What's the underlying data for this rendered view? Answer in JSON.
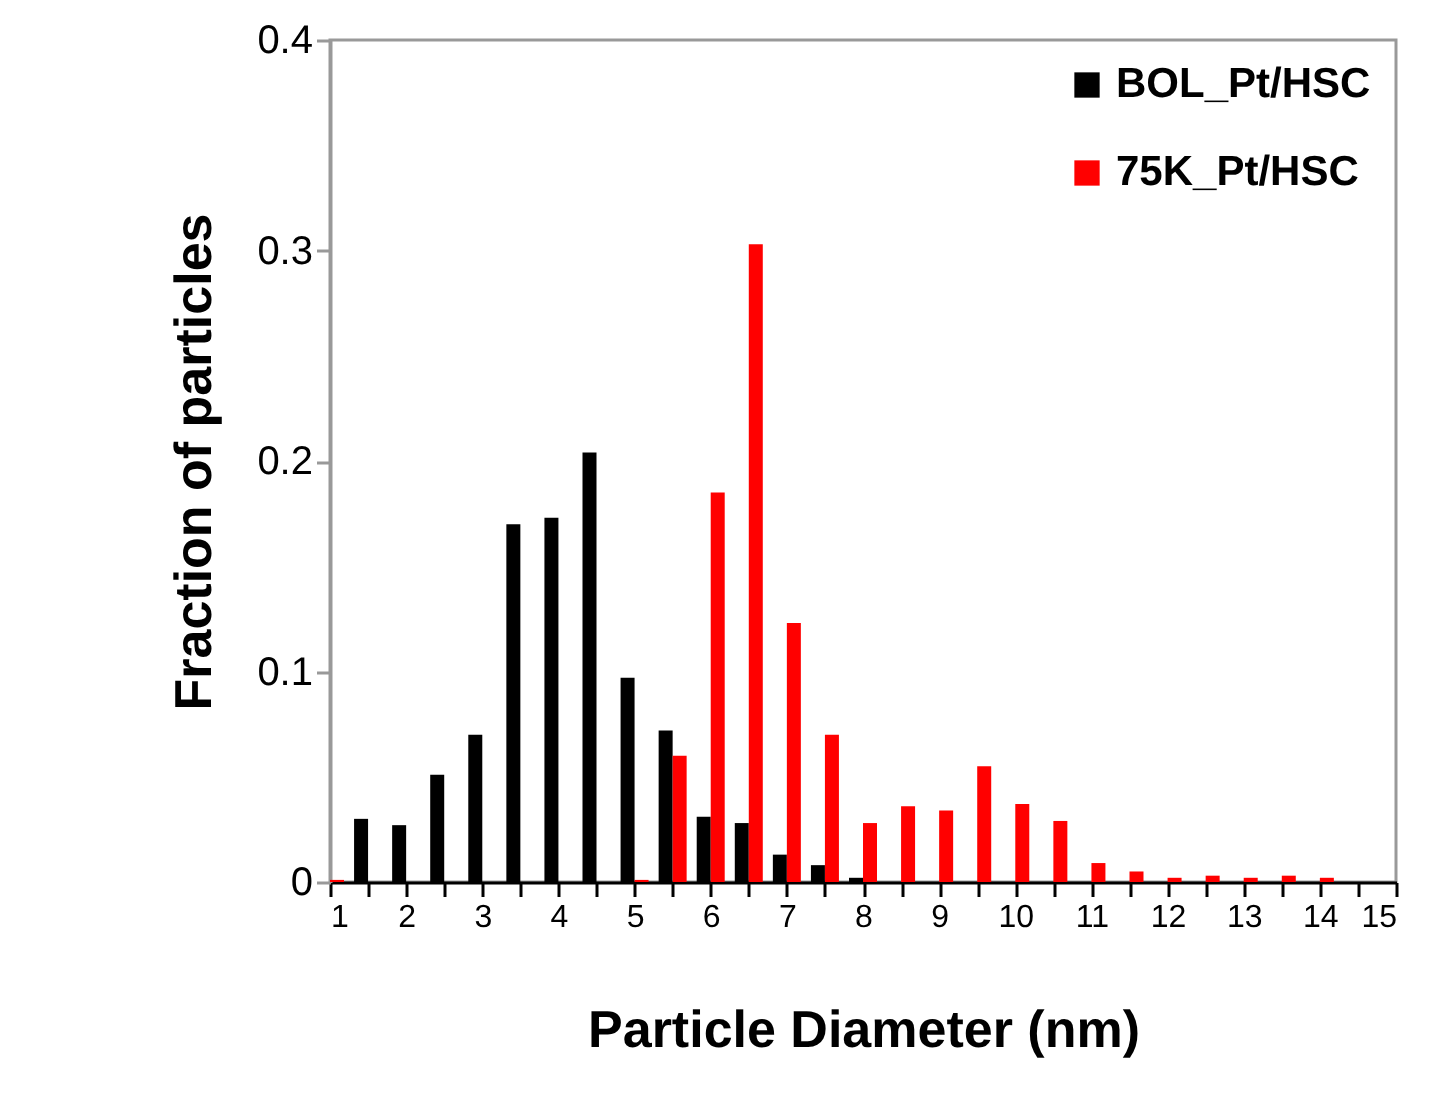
{
  "chart_data": {
    "type": "bar",
    "xlabel": "Particle Diameter (nm)",
    "ylabel": "Fraction of particles",
    "xlim": [
      1,
      15
    ],
    "xticks": [
      1,
      {
        "value": 1.5,
        "label": null
      },
      2,
      {
        "value": 2.5,
        "label": null
      },
      3,
      {
        "value": 3.5,
        "label": null
      },
      4,
      {
        "value": 4.5,
        "label": null
      },
      5,
      {
        "value": 5.5,
        "label": null
      },
      6,
      {
        "value": 6.5,
        "label": null
      },
      7,
      {
        "value": 7.5,
        "label": null
      },
      8,
      {
        "value": 8.5,
        "label": null
      },
      9,
      {
        "value": 9.5,
        "label": null
      },
      10,
      {
        "value": 10.5,
        "label": null
      },
      11,
      {
        "value": 11.5,
        "label": null
      },
      12,
      {
        "value": 12.5,
        "label": null
      },
      13,
      {
        "value": 13.5,
        "label": null
      },
      14,
      {
        "value": 14.5,
        "label": null
      },
      15
    ],
    "ylim": [
      0,
      0.4
    ],
    "yticks": [
      0,
      0.1,
      0.2,
      0.3,
      0.4
    ],
    "legend": "top right",
    "series": [
      {
        "name": "BOL_Pt/HSC",
        "color": "#000000",
        "x": [
          1.5,
          2,
          2.5,
          3,
          3.5,
          4,
          4.5,
          5,
          5.5,
          6,
          6.5,
          7,
          7.5,
          8
        ],
        "values": [
          0.03,
          0.027,
          0.051,
          0.07,
          0.17,
          0.173,
          0.204,
          0.097,
          0.072,
          0.031,
          0.028,
          0.013,
          0.008,
          0.002
        ]
      },
      {
        "name": "75K_Pt/HSC",
        "color": "#ff0000",
        "x": [
          1,
          5,
          5.5,
          6,
          6.5,
          7,
          7.5,
          8,
          8.5,
          9,
          9.5,
          10,
          10.5,
          11,
          11.5,
          12,
          12.5,
          13,
          13.5,
          14
        ],
        "values": [
          0.001,
          0.001,
          0.06,
          0.185,
          0.303,
          0.123,
          0.07,
          0.028,
          0.036,
          0.034,
          0.055,
          0.037,
          0.029,
          0.009,
          0.005,
          0.002,
          0.003,
          0.002,
          0.003,
          0.002
        ]
      }
    ]
  }
}
